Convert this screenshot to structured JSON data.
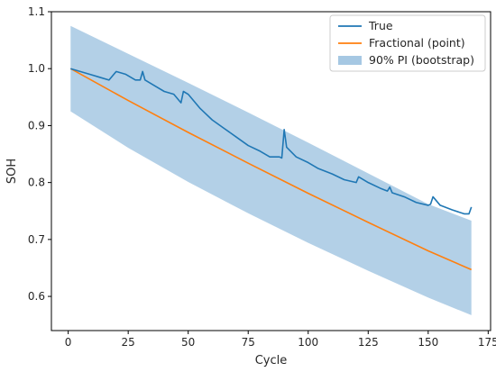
{
  "chart_data": {
    "type": "line",
    "xlabel": "Cycle",
    "ylabel": "SOH",
    "xlim": [
      -7,
      176
    ],
    "ylim": [
      0.54,
      1.1
    ],
    "xticks": [
      0,
      25,
      50,
      75,
      100,
      125,
      150,
      175
    ],
    "yticks": [
      0.6,
      0.7,
      0.8,
      0.9,
      1.0,
      1.1
    ],
    "xtick_labels": [
      "0",
      "25",
      "50",
      "75",
      "100",
      "125",
      "150",
      "175"
    ],
    "ytick_labels": [
      "0.6",
      "0.7",
      "0.8",
      "0.9",
      "1.0",
      "1.1"
    ],
    "grid": false,
    "legend_position": "top-right",
    "legend": [
      "True",
      "Fractional (point)",
      "90% PI (bootstrap)"
    ],
    "colors": {
      "true": "#1f77b4",
      "fractional": "#ff7f0e",
      "band": "#a6c8e3"
    },
    "series": [
      {
        "name": "True",
        "x": [
          1,
          5,
          9,
          13,
          17,
          20,
          24,
          28,
          30,
          31,
          32,
          36,
          40,
          44,
          47,
          48,
          50,
          55,
          60,
          65,
          70,
          75,
          80,
          84,
          88,
          89,
          90,
          91,
          95,
          100,
          104,
          110,
          115,
          120,
          121,
          125,
          130,
          133,
          134,
          135,
          140,
          145,
          150,
          151,
          152,
          155,
          160,
          165,
          167,
          168
        ],
        "y": [
          1.0,
          0.995,
          0.99,
          0.985,
          0.98,
          0.995,
          0.99,
          0.98,
          0.98,
          0.995,
          0.98,
          0.97,
          0.96,
          0.955,
          0.94,
          0.96,
          0.955,
          0.93,
          0.91,
          0.895,
          0.88,
          0.865,
          0.855,
          0.845,
          0.845,
          0.843,
          0.893,
          0.862,
          0.845,
          0.835,
          0.825,
          0.815,
          0.805,
          0.8,
          0.81,
          0.8,
          0.79,
          0.785,
          0.792,
          0.782,
          0.775,
          0.765,
          0.76,
          0.762,
          0.775,
          0.76,
          0.752,
          0.745,
          0.745,
          0.757
        ]
      },
      {
        "name": "Fractional (point)",
        "x": [
          1,
          25,
          50,
          75,
          100,
          125,
          150,
          168
        ],
        "y": [
          1.0,
          0.944,
          0.888,
          0.834,
          0.781,
          0.73,
          0.68,
          0.647
        ]
      },
      {
        "name": "90% PI (bootstrap)",
        "x": [
          1,
          25,
          50,
          75,
          100,
          125,
          150,
          168
        ],
        "upper": [
          1.075,
          1.026,
          0.975,
          0.923,
          0.87,
          0.816,
          0.762,
          0.733
        ],
        "lower": [
          0.925,
          0.861,
          0.801,
          0.746,
          0.694,
          0.645,
          0.598,
          0.567
        ]
      }
    ]
  }
}
